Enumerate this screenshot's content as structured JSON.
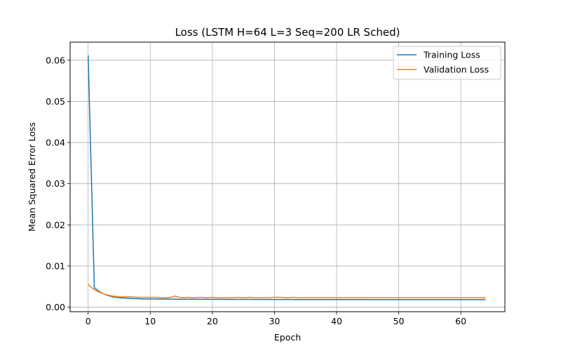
{
  "chart_data": {
    "type": "line",
    "title": "Loss (LSTM H=64 L=3 Seq=200 LR Sched)",
    "xlabel": "Epoch",
    "ylabel": "Mean Squared Error Loss",
    "xlim": [
      -2.9,
      67.1
    ],
    "ylim": [
      -0.0011,
      0.0644
    ],
    "xticks": [
      0,
      10,
      20,
      30,
      40,
      50,
      60
    ],
    "yticks": [
      0.0,
      0.01,
      0.02,
      0.03,
      0.04,
      0.05,
      0.06
    ],
    "xtick_labels": [
      "0",
      "10",
      "20",
      "30",
      "40",
      "50",
      "60"
    ],
    "ytick_labels": [
      "0.00",
      "0.01",
      "0.02",
      "0.03",
      "0.04",
      "0.05",
      "0.06"
    ],
    "grid": true,
    "legend_position": "top-right",
    "x": [
      0,
      1,
      2,
      3,
      4,
      5,
      6,
      7,
      8,
      9,
      10,
      11,
      12,
      13,
      14,
      15,
      16,
      17,
      18,
      19,
      20,
      21,
      22,
      23,
      24,
      25,
      26,
      27,
      28,
      29,
      30,
      31,
      32,
      33,
      34,
      35,
      36,
      37,
      38,
      39,
      40,
      41,
      42,
      43,
      44,
      45,
      46,
      47,
      48,
      49,
      50,
      51,
      52,
      53,
      54,
      55,
      56,
      57,
      58,
      59,
      60,
      61,
      62,
      63,
      64
    ],
    "series": [
      {
        "name": "Training Loss",
        "color": "#1f77b4",
        "values": [
          0.0612,
          0.0047,
          0.0036,
          0.0029,
          0.0025,
          0.0023,
          0.0022,
          0.0021,
          0.00205,
          0.002,
          0.002,
          0.00198,
          0.00196,
          0.00195,
          0.00194,
          0.00193,
          0.00192,
          0.00192,
          0.00191,
          0.0019,
          0.0019,
          0.0019,
          0.00189,
          0.00189,
          0.00188,
          0.00188,
          0.00188,
          0.00187,
          0.00187,
          0.00187,
          0.00186,
          0.00186,
          0.00186,
          0.00186,
          0.00185,
          0.00185,
          0.00185,
          0.00185,
          0.00185,
          0.00184,
          0.00184,
          0.00184,
          0.00184,
          0.00184,
          0.00184,
          0.00184,
          0.00183,
          0.00183,
          0.00183,
          0.00183,
          0.00183,
          0.00183,
          0.00183,
          0.00183,
          0.00183,
          0.00183,
          0.00183,
          0.00183,
          0.00183,
          0.00183,
          0.00183,
          0.00183,
          0.00183,
          0.00183,
          0.00183
        ]
      },
      {
        "name": "Validation Loss",
        "color": "#ff7f0e",
        "values": [
          0.0055,
          0.0042,
          0.0035,
          0.003,
          0.0027,
          0.0025,
          0.0025,
          0.0025,
          0.0024,
          0.0024,
          0.0024,
          0.0024,
          0.0023,
          0.0023,
          0.0027,
          0.0023,
          0.0024,
          0.0023,
          0.0024,
          0.0023,
          0.0024,
          0.0023,
          0.0023,
          0.0023,
          0.0024,
          0.0023,
          0.0024,
          0.0023,
          0.0023,
          0.0023,
          0.0024,
          0.0024,
          0.0023,
          0.0024,
          0.0023,
          0.0023,
          0.0023,
          0.0023,
          0.0023,
          0.0023,
          0.0023,
          0.0023,
          0.0023,
          0.0023,
          0.0023,
          0.0023,
          0.0023,
          0.0023,
          0.0023,
          0.0023,
          0.0023,
          0.0023,
          0.0023,
          0.0023,
          0.0023,
          0.0023,
          0.0023,
          0.0023,
          0.0023,
          0.0023,
          0.0023,
          0.0023,
          0.0023,
          0.0023,
          0.0023
        ]
      }
    ]
  }
}
